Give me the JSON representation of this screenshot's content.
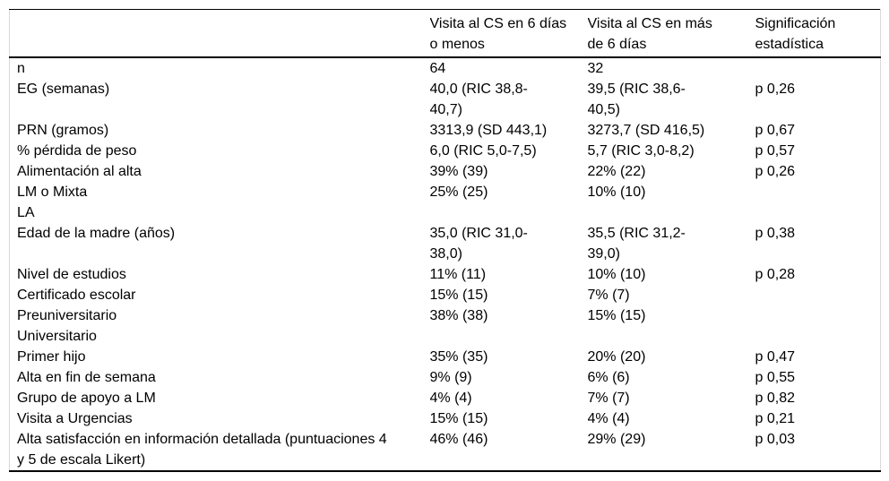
{
  "colors": {
    "text": "#000000",
    "rule": "#000000",
    "side_rule": "#d9d9d9",
    "background": "#ffffff"
  },
  "table": {
    "columns": [
      {
        "label": ""
      },
      {
        "label": "Visita al CS en 6 días\no menos"
      },
      {
        "label": "Visita al CS en más\nde 6 días"
      },
      {
        "label": "Significación\nestadística"
      }
    ],
    "rows": [
      {
        "label": "n",
        "group1": "64",
        "group2": "32",
        "p": ""
      },
      {
        "label": "EG (semanas)",
        "group1": "40,0 (RIC 38,8-\n40,7)",
        "group2": "39,5 (RIC 38,6-\n40,5)",
        "p": "p 0,26"
      },
      {
        "label": "PRN (gramos)",
        "group1": "3313,9 (SD 443,1)",
        "group2": "3273,7 (SD 416,5)",
        "p": "p 0,67"
      },
      {
        "label": "% pérdida de peso",
        "group1": "6,0 (RIC 5,0-7,5)",
        "group2": "5,7 (RIC 3,0-8,2)",
        "p": "p 0,57"
      },
      {
        "label": "Alimentación al alta",
        "group1": "39% (39)",
        "group2": "22% (22)",
        "p": "p 0,26"
      },
      {
        "label": "LM o Mixta",
        "group1": "25% (25)",
        "group2": "10% (10)",
        "p": ""
      },
      {
        "label": "LA",
        "group1": "",
        "group2": "",
        "p": ""
      },
      {
        "label": "Edad de la madre (años)",
        "group1": "35,0 (RIC 31,0-\n38,0)",
        "group2": "35,5 (RIC 31,2-\n39,0)",
        "p": "p 0,38"
      },
      {
        "label": "Nivel de estudios",
        "group1": "11% (11)",
        "group2": "10% (10)",
        "p": "p 0,28"
      },
      {
        "label": "Certificado escolar",
        "group1": "15% (15)",
        "group2": "7% (7)",
        "p": ""
      },
      {
        "label": "Preuniversitario",
        "group1": "38% (38)",
        "group2": "15% (15)",
        "p": ""
      },
      {
        "label": "Universitario",
        "group1": "",
        "group2": "",
        "p": ""
      },
      {
        "label": "Primer hijo",
        "group1": "35% (35)",
        "group2": "20% (20)",
        "p": "p 0,47"
      },
      {
        "label": "Alta en fin de semana",
        "group1": "9% (9)",
        "group2": "6% (6)",
        "p": "p 0,55"
      },
      {
        "label": "Grupo de apoyo a LM",
        "group1": "4% (4)",
        "group2": "7% (7)",
        "p": "p 0,82"
      },
      {
        "label": "Visita a Urgencias",
        "group1": "15% (15)",
        "group2": "4% (4)",
        "p": "p 0,21"
      },
      {
        "label": "Alta satisfacción en información detallada (puntuaciones 4\ny 5 de escala Likert)",
        "group1": "46% (46)",
        "group2": "29% (29)",
        "p": "p 0,03"
      }
    ]
  }
}
